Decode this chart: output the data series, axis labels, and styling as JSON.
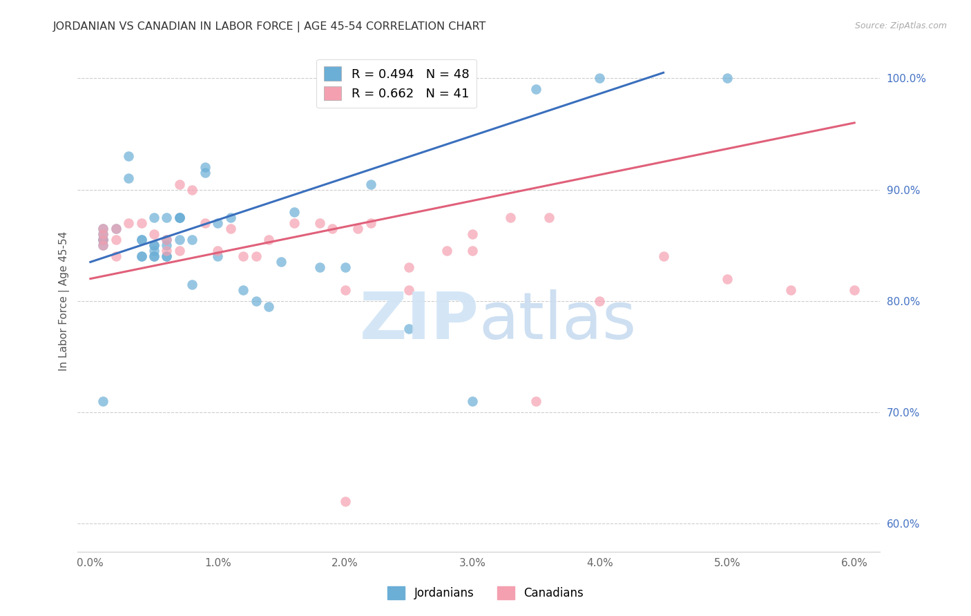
{
  "title": "JORDANIAN VS CANADIAN IN LABOR FORCE | AGE 45-54 CORRELATION CHART",
  "source": "Source: ZipAtlas.com",
  "ylabel": "In Labor Force | Age 45-54",
  "right_yticks": [
    0.6,
    0.7,
    0.8,
    0.9,
    1.0
  ],
  "right_yticklabels": [
    "60.0%",
    "70.0%",
    "80.0%",
    "90.0%",
    "100.0%"
  ],
  "xlim": [
    -0.001,
    0.062
  ],
  "ylim": [
    0.575,
    1.025
  ],
  "blue_R": 0.494,
  "blue_N": 48,
  "pink_R": 0.662,
  "pink_N": 41,
  "jordanian_color": "#6baed6",
  "canadian_color": "#f4a0b0",
  "blue_line_color": "#3a6fbd",
  "pink_line_color": "#e0607a",
  "grid_color": "#cccccc",
  "background_color": "#ffffff",
  "right_axis_color": "#4472c4",
  "xtick_vals": [
    0.0,
    0.01,
    0.02,
    0.03,
    0.04,
    0.05,
    0.06
  ],
  "xtick_labels": [
    "0.0%",
    "1.0%",
    "2.0%",
    "3.0%",
    "4.0%",
    "5.0%",
    "6.0%"
  ],
  "jordanians_x": [
    0.002,
    0.003,
    0.003,
    0.004,
    0.004,
    0.004,
    0.004,
    0.005,
    0.005,
    0.005,
    0.005,
    0.005,
    0.005,
    0.006,
    0.006,
    0.006,
    0.006,
    0.006,
    0.007,
    0.007,
    0.007,
    0.007,
    0.008,
    0.008,
    0.009,
    0.009,
    0.01,
    0.01,
    0.011,
    0.012,
    0.013,
    0.014,
    0.015,
    0.016,
    0.018,
    0.02,
    0.022,
    0.025,
    0.03,
    0.035,
    0.04,
    0.05,
    0.001,
    0.001,
    0.001,
    0.001,
    0.001,
    0.001
  ],
  "jordanians_y": [
    0.865,
    0.93,
    0.91,
    0.84,
    0.855,
    0.84,
    0.855,
    0.85,
    0.84,
    0.84,
    0.85,
    0.845,
    0.875,
    0.855,
    0.85,
    0.84,
    0.84,
    0.875,
    0.855,
    0.875,
    0.875,
    0.875,
    0.855,
    0.815,
    0.92,
    0.915,
    0.87,
    0.84,
    0.875,
    0.81,
    0.8,
    0.795,
    0.835,
    0.88,
    0.83,
    0.83,
    0.905,
    0.775,
    0.71,
    0.99,
    1.0,
    1.0,
    0.85,
    0.855,
    0.855,
    0.86,
    0.865,
    0.71
  ],
  "canadians_x": [
    0.003,
    0.004,
    0.005,
    0.006,
    0.006,
    0.007,
    0.007,
    0.008,
    0.009,
    0.01,
    0.011,
    0.012,
    0.013,
    0.014,
    0.016,
    0.018,
    0.019,
    0.021,
    0.022,
    0.025,
    0.028,
    0.03,
    0.033,
    0.036,
    0.04,
    0.045,
    0.05,
    0.055,
    0.06,
    0.001,
    0.001,
    0.001,
    0.001,
    0.002,
    0.002,
    0.002,
    0.02,
    0.025,
    0.03,
    0.035,
    0.02
  ],
  "canadians_y": [
    0.87,
    0.87,
    0.86,
    0.855,
    0.845,
    0.845,
    0.905,
    0.9,
    0.87,
    0.845,
    0.865,
    0.84,
    0.84,
    0.855,
    0.87,
    0.87,
    0.865,
    0.865,
    0.87,
    0.83,
    0.845,
    0.845,
    0.875,
    0.875,
    0.8,
    0.84,
    0.82,
    0.81,
    0.81,
    0.85,
    0.855,
    0.86,
    0.865,
    0.84,
    0.855,
    0.865,
    0.81,
    0.81,
    0.86,
    0.71,
    0.62
  ]
}
